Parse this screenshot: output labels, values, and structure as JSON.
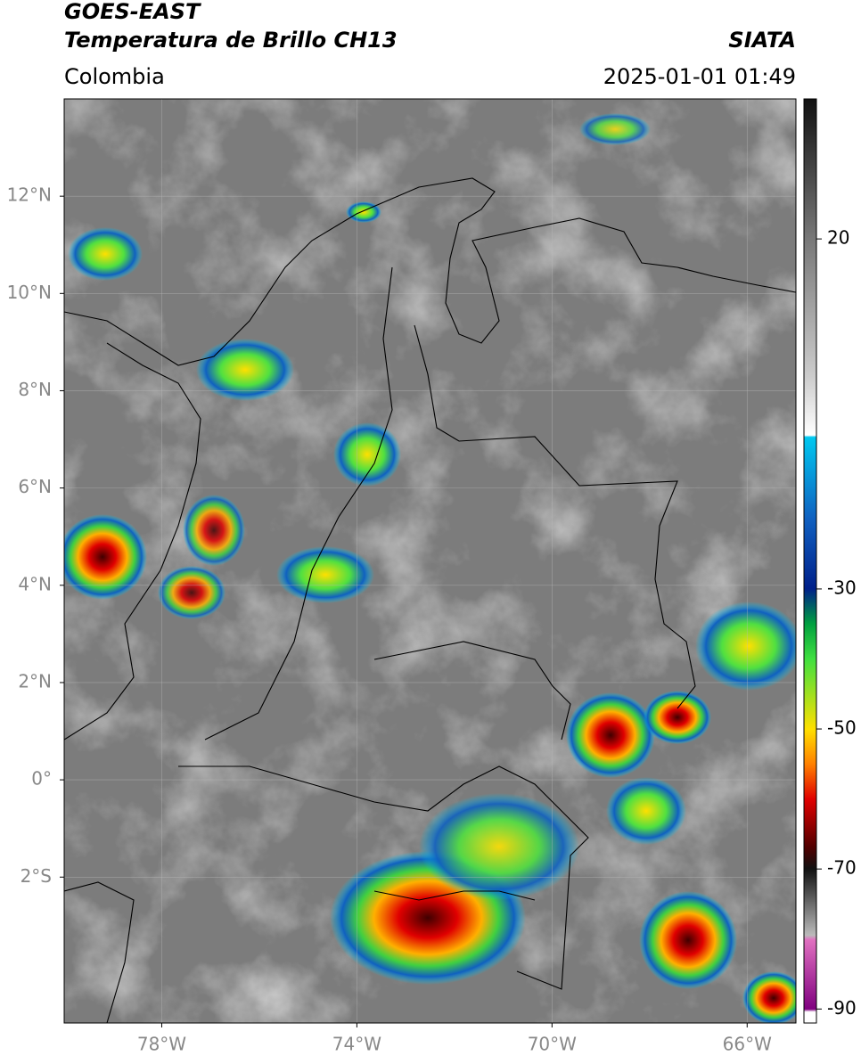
{
  "header": {
    "title": "GOES-EAST",
    "subtitle": "Temperatura de Brillo CH13",
    "region": "Colombia",
    "source": "SIATA",
    "timestamp": "2025-01-01 01:49"
  },
  "map": {
    "lonlim": [
      -80,
      -65
    ],
    "latlim": [
      -5,
      14
    ],
    "grid": true,
    "xticks": [
      {
        "value": -78,
        "label": "78°W"
      },
      {
        "value": -74,
        "label": "74°W"
      },
      {
        "value": -70,
        "label": "70°W"
      },
      {
        "value": -66,
        "label": "66°W"
      }
    ],
    "yticks": [
      {
        "value": 12,
        "label": "12°N"
      },
      {
        "value": 10,
        "label": "10°N"
      },
      {
        "value": 8,
        "label": "8°N"
      },
      {
        "value": 6,
        "label": "6°N"
      },
      {
        "value": 4,
        "label": "4°N"
      },
      {
        "value": 2,
        "label": "2°N"
      },
      {
        "value": 0,
        "label": "0°"
      },
      {
        "value": -2,
        "label": "2°S"
      }
    ]
  },
  "colorbar": {
    "lim": [
      -92,
      40
    ],
    "ticks": [
      20,
      -30,
      -50,
      -70,
      -90
    ]
  }
}
